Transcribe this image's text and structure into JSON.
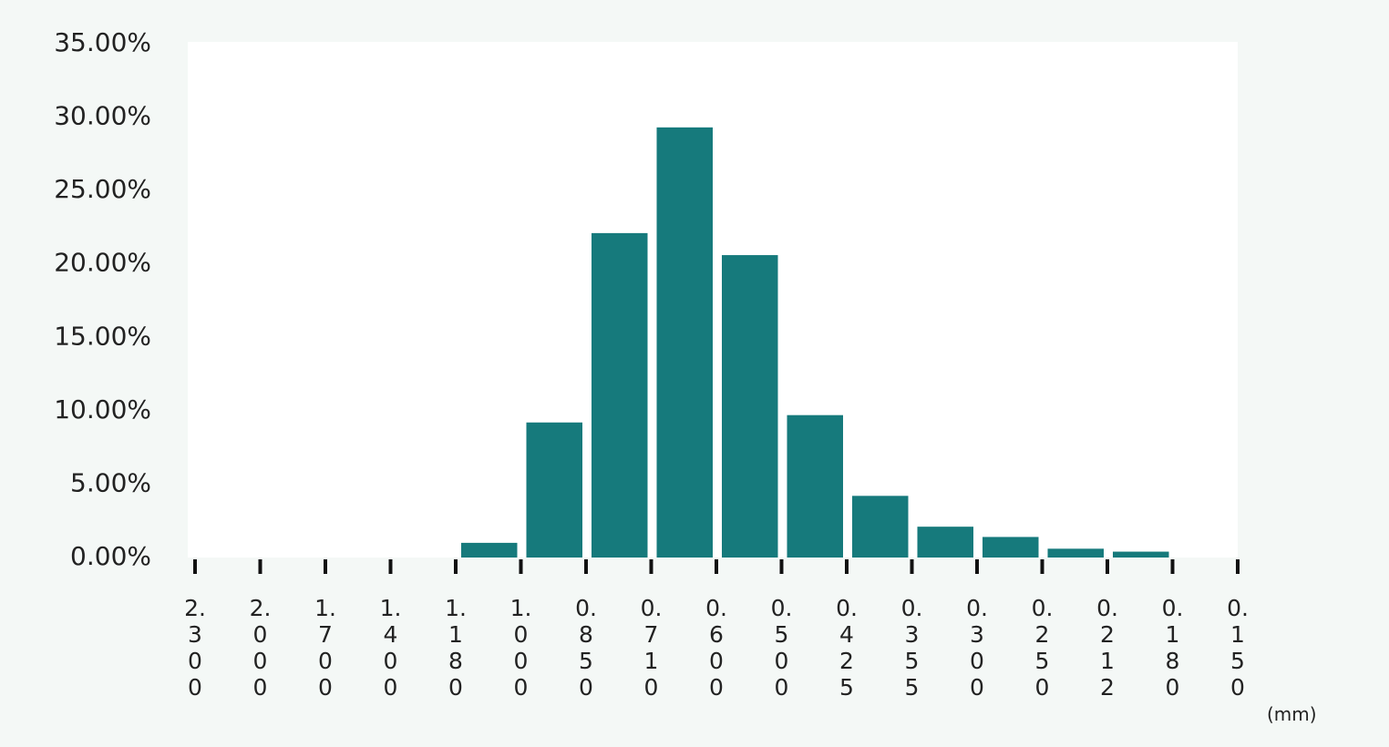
{
  "chart_data": {
    "type": "histogram",
    "bins": [
      "2.300",
      "2.000",
      "1.700",
      "1.400",
      "1.180",
      "1.000",
      "0.850",
      "0.710",
      "0.600",
      "0.500",
      "0.425",
      "0.355",
      "0.300",
      "0.250",
      "0.212",
      "0.180",
      "0.150"
    ],
    "values": [
      0,
      0,
      0,
      0,
      1.0,
      9.2,
      22.1,
      29.3,
      20.6,
      9.7,
      4.2,
      2.1,
      1.4,
      0.6,
      0.4,
      0
    ],
    "color": "#167a7c",
    "x_unit": "(mm)",
    "ylim": [
      0,
      35
    ],
    "yticks": [
      {
        "value": 0,
        "label": "0.00%"
      },
      {
        "value": 5,
        "label": "5.00%"
      },
      {
        "value": 10,
        "label": "10.00%"
      },
      {
        "value": 15,
        "label": "15.00%"
      },
      {
        "value": 20,
        "label": "20.00%"
      },
      {
        "value": 25,
        "label": "25.00%"
      },
      {
        "value": 30,
        "label": "30.00%"
      },
      {
        "value": 35,
        "label": "35.00%"
      }
    ],
    "grid": false
  }
}
